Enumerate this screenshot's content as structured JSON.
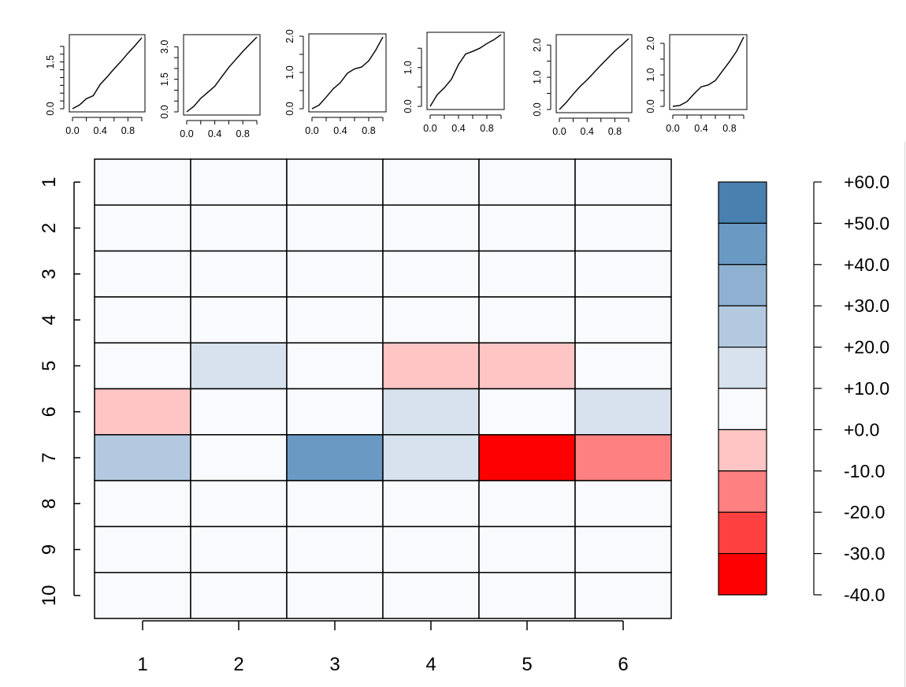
{
  "chart_data": [
    {
      "type": "line",
      "id": "mini-1",
      "x": [
        0,
        0.1,
        0.2,
        0.3,
        0.4,
        0.5,
        0.6,
        0.7,
        0.8,
        0.9,
        1.0
      ],
      "y": [
        0,
        0.12,
        0.32,
        0.42,
        0.78,
        1.02,
        1.28,
        1.52,
        1.78,
        2.02,
        2.28
      ],
      "xlim": [
        0,
        1
      ],
      "ylim": [
        0,
        2.3
      ],
      "xticks": [
        0.0,
        0.2,
        0.4,
        0.6,
        0.8,
        1.0
      ],
      "xtick_labels": [
        "0.0",
        "",
        "0.4",
        "",
        "0.8",
        ""
      ],
      "yticks": [
        0,
        0.25,
        0.5,
        0.75,
        1.0,
        1.25,
        1.5,
        1.75,
        2.0
      ],
      "ytick_labels": [
        "0.0",
        "",
        "",
        "",
        "",
        "",
        "1.5",
        "",
        ""
      ]
    },
    {
      "type": "line",
      "id": "mini-2",
      "x": [
        0,
        0.1,
        0.2,
        0.3,
        0.4,
        0.5,
        0.6,
        0.7,
        0.8,
        0.9,
        1.0
      ],
      "y": [
        0,
        0.25,
        0.62,
        0.9,
        1.18,
        1.62,
        2.05,
        2.42,
        2.78,
        3.12,
        3.45
      ],
      "xlim": [
        0,
        1
      ],
      "ylim": [
        0,
        3.45
      ],
      "xticks": [
        0.0,
        0.2,
        0.4,
        0.6,
        0.8,
        1.0
      ],
      "xtick_labels": [
        "0.0",
        "",
        "0.4",
        "",
        "0.8",
        ""
      ],
      "yticks": [
        0,
        0.5,
        1.0,
        1.5,
        2.0,
        2.5,
        3.0
      ],
      "ytick_labels": [
        "0.0",
        "",
        "",
        "1.5",
        "",
        "",
        "3.0"
      ]
    },
    {
      "type": "line",
      "id": "mini-3",
      "x": [
        0,
        0.1,
        0.2,
        0.3,
        0.4,
        0.5,
        0.6,
        0.7,
        0.8,
        0.9,
        1.0
      ],
      "y": [
        0,
        0.1,
        0.32,
        0.55,
        0.72,
        0.98,
        1.1,
        1.15,
        1.32,
        1.62,
        1.98
      ],
      "xlim": [
        0,
        1
      ],
      "ylim": [
        0,
        2.0
      ],
      "xticks": [
        0.0,
        0.2,
        0.4,
        0.6,
        0.8,
        1.0
      ],
      "xtick_labels": [
        "0.0",
        "",
        "0.4",
        "",
        "0.8",
        ""
      ],
      "yticks": [
        0,
        0.5,
        1.0,
        1.5,
        2.0
      ],
      "ytick_labels": [
        "0.0",
        "",
        "1.0",
        "",
        "2.0"
      ]
    },
    {
      "type": "line",
      "id": "mini-4",
      "x": [
        0,
        0.1,
        0.2,
        0.3,
        0.4,
        0.5,
        0.6,
        0.7,
        0.8,
        0.9,
        1.0
      ],
      "y": [
        0,
        0.3,
        0.48,
        0.7,
        1.08,
        1.35,
        1.42,
        1.5,
        1.62,
        1.72,
        1.85
      ],
      "xlim": [
        0,
        1
      ],
      "ylim": [
        0,
        1.85
      ],
      "xticks": [
        0.0,
        0.2,
        0.4,
        0.6,
        0.8,
        1.0
      ],
      "xtick_labels": [
        "0.0",
        "",
        "0.4",
        "",
        "0.8",
        ""
      ],
      "yticks": [
        0,
        0.5,
        1.0,
        1.5
      ],
      "ytick_labels": [
        "0.0",
        "",
        "1.0",
        ""
      ]
    },
    {
      "type": "line",
      "id": "mini-5",
      "x": [
        0,
        0.1,
        0.2,
        0.3,
        0.4,
        0.5,
        0.6,
        0.7,
        0.8,
        0.9,
        1.0
      ],
      "y": [
        0,
        0.22,
        0.48,
        0.72,
        0.92,
        1.15,
        1.38,
        1.6,
        1.82,
        2.0,
        2.2
      ],
      "xlim": [
        0,
        1
      ],
      "ylim": [
        0,
        2.25
      ],
      "xticks": [
        0.0,
        0.2,
        0.4,
        0.6,
        0.8,
        1.0
      ],
      "xtick_labels": [
        "0.0",
        "",
        "0.4",
        "",
        "0.8",
        ""
      ],
      "yticks": [
        0,
        0.5,
        1.0,
        1.5,
        2.0
      ],
      "ytick_labels": [
        "0.0",
        "",
        "1.0",
        "",
        "2.0"
      ]
    },
    {
      "type": "line",
      "id": "mini-6",
      "x": [
        0,
        0.1,
        0.2,
        0.3,
        0.4,
        0.5,
        0.6,
        0.7,
        0.8,
        0.9,
        1.0
      ],
      "y": [
        0,
        0.03,
        0.15,
        0.4,
        0.62,
        0.68,
        0.82,
        1.12,
        1.42,
        1.75,
        2.2
      ],
      "xlim": [
        0,
        1
      ],
      "ylim": [
        0,
        2.2
      ],
      "xticks": [
        0.0,
        0.2,
        0.4,
        0.6,
        0.8,
        1.0
      ],
      "xtick_labels": [
        "0.0",
        "",
        "0.4",
        "",
        "0.8",
        ""
      ],
      "yticks": [
        0,
        0.5,
        1.0,
        1.5,
        2.0
      ],
      "ytick_labels": [
        "0.0",
        "",
        "1.0",
        "",
        "2.0"
      ]
    },
    {
      "type": "heatmap",
      "id": "main-heatmap",
      "rows": [
        "1",
        "2",
        "3",
        "4",
        "5",
        "6",
        "7",
        "8",
        "9",
        "10"
      ],
      "cols": [
        "1",
        "2",
        "3",
        "4",
        "5",
        "6"
      ],
      "values": [
        [
          0,
          0,
          0,
          0,
          0,
          0
        ],
        [
          0,
          0,
          0,
          0,
          0,
          0
        ],
        [
          0,
          0,
          0,
          0,
          0,
          0
        ],
        [
          0,
          0,
          0,
          0,
          0,
          0
        ],
        [
          0,
          15,
          0,
          -5,
          -5,
          0
        ],
        [
          -5,
          0,
          0,
          15,
          0,
          15
        ],
        [
          25,
          0,
          45,
          15,
          -35,
          -15
        ],
        [
          0,
          0,
          0,
          0,
          0,
          0
        ],
        [
          0,
          0,
          0,
          0,
          0,
          0
        ],
        [
          0,
          0,
          0,
          0,
          0,
          0
        ]
      ]
    },
    {
      "type": "legend",
      "id": "color-key",
      "bins": [
        {
          "from": 50,
          "to": 60,
          "color": "#4a80b0"
        },
        {
          "from": 40,
          "to": 50,
          "color": "#6a99c3"
        },
        {
          "from": 30,
          "to": 40,
          "color": "#8fb0d0"
        },
        {
          "from": 20,
          "to": 30,
          "color": "#b3c9e0"
        },
        {
          "from": 10,
          "to": 20,
          "color": "#d7e2ee"
        },
        {
          "from": 0,
          "to": 10,
          "color": "#f8fafd"
        },
        {
          "from": -10,
          "to": 0,
          "color": "#ffc4c4"
        },
        {
          "from": -20,
          "to": -10,
          "color": "#ff8080"
        },
        {
          "from": -30,
          "to": -20,
          "color": "#ff4040"
        },
        {
          "from": -40,
          "to": -30,
          "color": "#ff0000"
        }
      ],
      "labels": [
        "+60.0",
        "+50.0",
        "+40.0",
        "+30.0",
        "+20.0",
        "+10.0",
        "+0.0",
        "-10.0",
        "-20.0",
        "-30.0",
        "-40.0"
      ]
    }
  ]
}
